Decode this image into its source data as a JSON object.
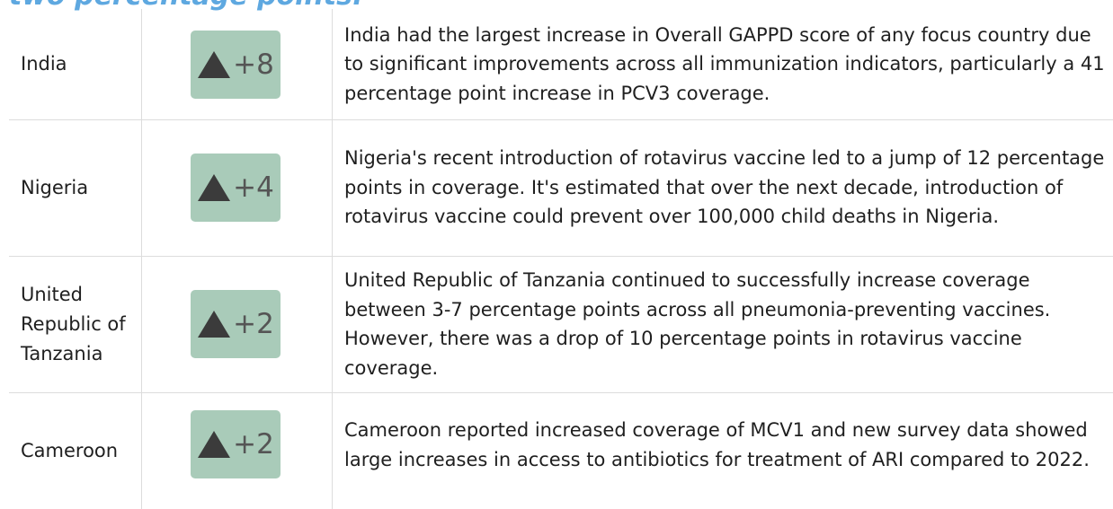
{
  "heading": "two percentage points.",
  "table": {
    "rows": [
      {
        "country": "India",
        "change": "+8",
        "note": "India had the largest increase in Overall GAPPD score of any focus country due to significant improvements across all immunization indicators, particularly a 41 percentage point increase in PCV3 coverage."
      },
      {
        "country": "Nigeria",
        "change": "+4",
        "note": "Nigeria's recent introduction of rotavirus vaccine led to a jump of 12 percentage points in coverage. It's estimated that over the next decade, introduction of rotavirus vaccine could prevent over 100,000 child deaths in Nigeria."
      },
      {
        "country": "United Republic of Tanzania",
        "change": "+2",
        "note": "United Republic of Tanzania continued to successfully increase coverage between 3-7 percentage points across all pneumonia-preventing vaccines. However, there was a drop of 10 percentage points in rotavirus vaccine coverage."
      },
      {
        "country": "Cameroon",
        "change": "+2",
        "note": "Cameroon reported increased coverage of MCV1 and new survey data showed large increases in access to antibiotics for treatment of ARI compared to 2022."
      }
    ]
  }
}
